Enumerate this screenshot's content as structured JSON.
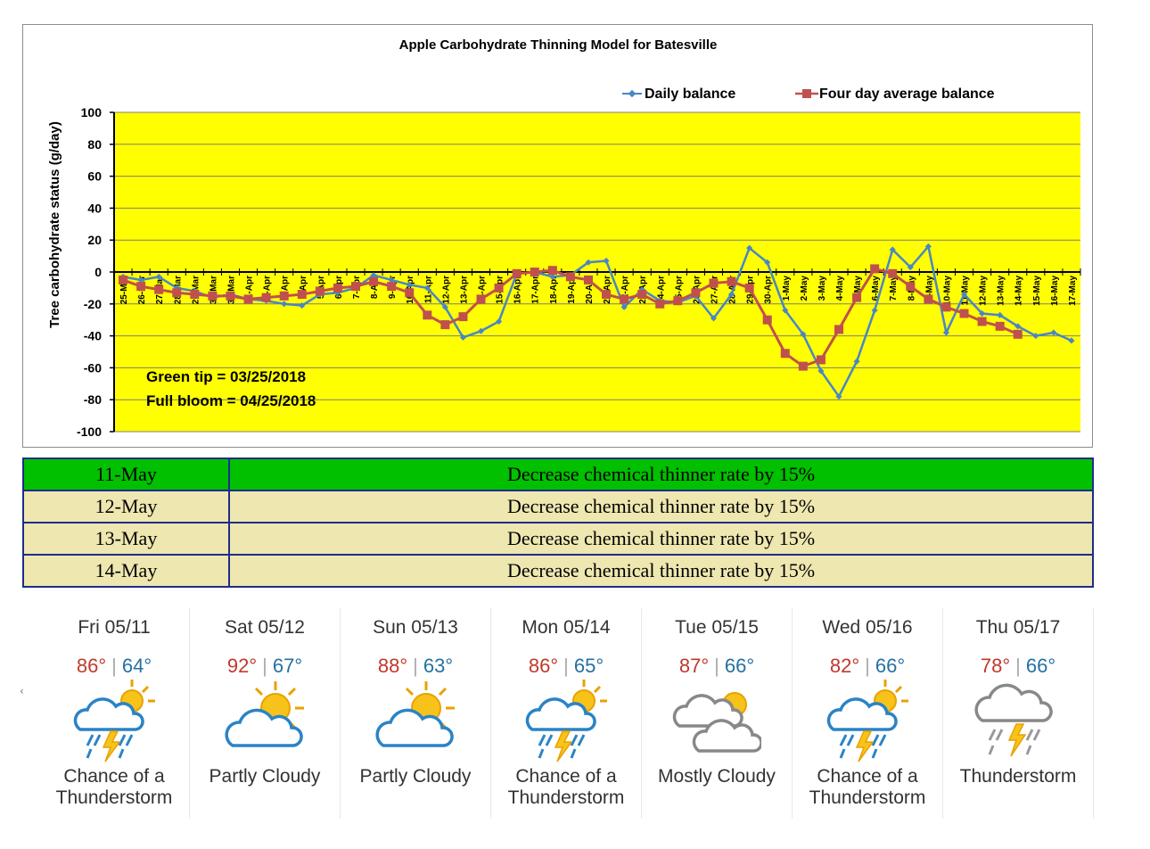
{
  "chart_data": {
    "type": "line",
    "title": "Apple Carbohydrate Thinning Model for Batesville",
    "ylabel": "Tree carbohydrate status (g/day)",
    "xlabel": "",
    "ylim": [
      -100,
      100
    ],
    "yticks": [
      100,
      80,
      60,
      40,
      20,
      0,
      -20,
      -40,
      -60,
      -80,
      -100
    ],
    "grid": true,
    "legend_position": "top-right",
    "background_color": "#ffff00",
    "categories": [
      "25-Mar",
      "26-Mar",
      "27-Mar",
      "28-Mar",
      "29-Mar",
      "30-Mar",
      "31-Mar",
      "1-Apr",
      "2-Apr",
      "3-Apr",
      "4-Apr",
      "5-Apr",
      "6-Apr",
      "7-Apr",
      "8-Apr",
      "9-Apr",
      "10-Apr",
      "11-Apr",
      "12-Apr",
      "13-Apr",
      "14-Apr",
      "15-Apr",
      "16-Apr",
      "17-Apr",
      "18-Apr",
      "19-Apr",
      "20-Apr",
      "21-Apr",
      "22-Apr",
      "23-Apr",
      "24-Apr",
      "25-Apr",
      "26-Apr",
      "27-Apr",
      "28-Apr",
      "29-Apr",
      "30-Apr",
      "1-May",
      "2-May",
      "3-May",
      "4-May",
      "5-May",
      "6-May",
      "7-May",
      "8-May",
      "9-May",
      "10-May",
      "11-May",
      "12-May",
      "13-May",
      "14-May",
      "15-May",
      "16-May",
      "17-May"
    ],
    "series": [
      {
        "name": "Daily balance",
        "color": "#4a86c5",
        "marker": "diamond",
        "values": [
          -3,
          -5,
          -3,
          -10,
          -12,
          -16,
          -14,
          -17,
          -18,
          -20,
          -21,
          -14,
          -13,
          -10,
          -2,
          -5,
          -8,
          -10,
          -22,
          -41,
          -37,
          -31,
          -1,
          0,
          -3,
          -2,
          6,
          7,
          -22,
          -11,
          -18,
          -19,
          -15,
          -29,
          -14,
          15,
          6,
          -24,
          -39,
          -62,
          -78,
          -56,
          -24,
          14,
          3,
          16,
          -38,
          -14,
          -26,
          -27,
          -34,
          -40,
          -38,
          -43
        ]
      },
      {
        "name": "Four day average balance",
        "color": "#c0504d",
        "marker": "square",
        "values": [
          -5,
          -9,
          -11,
          -13,
          -14,
          -15,
          -15,
          -17,
          -16,
          -15,
          -14,
          -12,
          -10,
          -9,
          -6,
          -9,
          -13,
          -27,
          -33,
          -28,
          -17,
          -10,
          -1,
          0,
          1,
          -3,
          -5,
          -14,
          -17,
          -14,
          -20,
          -18,
          -13,
          -7,
          -6,
          -10,
          -30,
          -51,
          -59,
          -55,
          -36,
          -16,
          2,
          -1,
          -9,
          -17,
          -22,
          -26,
          -31,
          -34,
          -39,
          null,
          null,
          null
        ]
      }
    ],
    "annotations": [
      "Green tip = 03/25/2018",
      "Full bloom = 04/25/2018"
    ]
  },
  "recommendations": [
    {
      "date": "11-May",
      "action": "Decrease chemical thinner rate by 15%",
      "color": "#00c000"
    },
    {
      "date": "12-May",
      "action": "Decrease chemical thinner rate by 15%",
      "color": "#eee7b0"
    },
    {
      "date": "13-May",
      "action": "Decrease chemical thinner rate by 15%",
      "color": "#eee7b0"
    },
    {
      "date": "14-May",
      "action": "Decrease chemical thinner rate by 15%",
      "color": "#eee7b0"
    }
  ],
  "forecast": [
    {
      "day": "Fri 05/11",
      "hi": "86°",
      "lo": "64°",
      "icon": "thunderstorm-sun-icon",
      "cond1": "Chance of a",
      "cond2": "Thunderstorm"
    },
    {
      "day": "Sat 05/12",
      "hi": "92°",
      "lo": "67°",
      "icon": "partly-cloudy-icon",
      "cond1": "Partly Cloudy",
      "cond2": ""
    },
    {
      "day": "Sun 05/13",
      "hi": "88°",
      "lo": "63°",
      "icon": "partly-cloudy-icon",
      "cond1": "Partly Cloudy",
      "cond2": ""
    },
    {
      "day": "Mon 05/14",
      "hi": "86°",
      "lo": "65°",
      "icon": "thunderstorm-sun-icon",
      "cond1": "Chance of a",
      "cond2": "Thunderstorm"
    },
    {
      "day": "Tue 05/15",
      "hi": "87°",
      "lo": "66°",
      "icon": "mostly-cloudy-icon",
      "cond1": "Mostly Cloudy",
      "cond2": ""
    },
    {
      "day": "Wed 05/16",
      "hi": "82°",
      "lo": "66°",
      "icon": "thunderstorm-sun-icon",
      "cond1": "Chance of a",
      "cond2": "Thunderstorm"
    },
    {
      "day": "Thu 05/17",
      "hi": "78°",
      "lo": "66°",
      "icon": "thunderstorm-icon",
      "cond1": "Thunderstorm",
      "cond2": ""
    }
  ],
  "colors": {
    "hi_temp": "#c0392b",
    "lo_temp": "#2471a3",
    "table_border": "#1f2c8a"
  }
}
